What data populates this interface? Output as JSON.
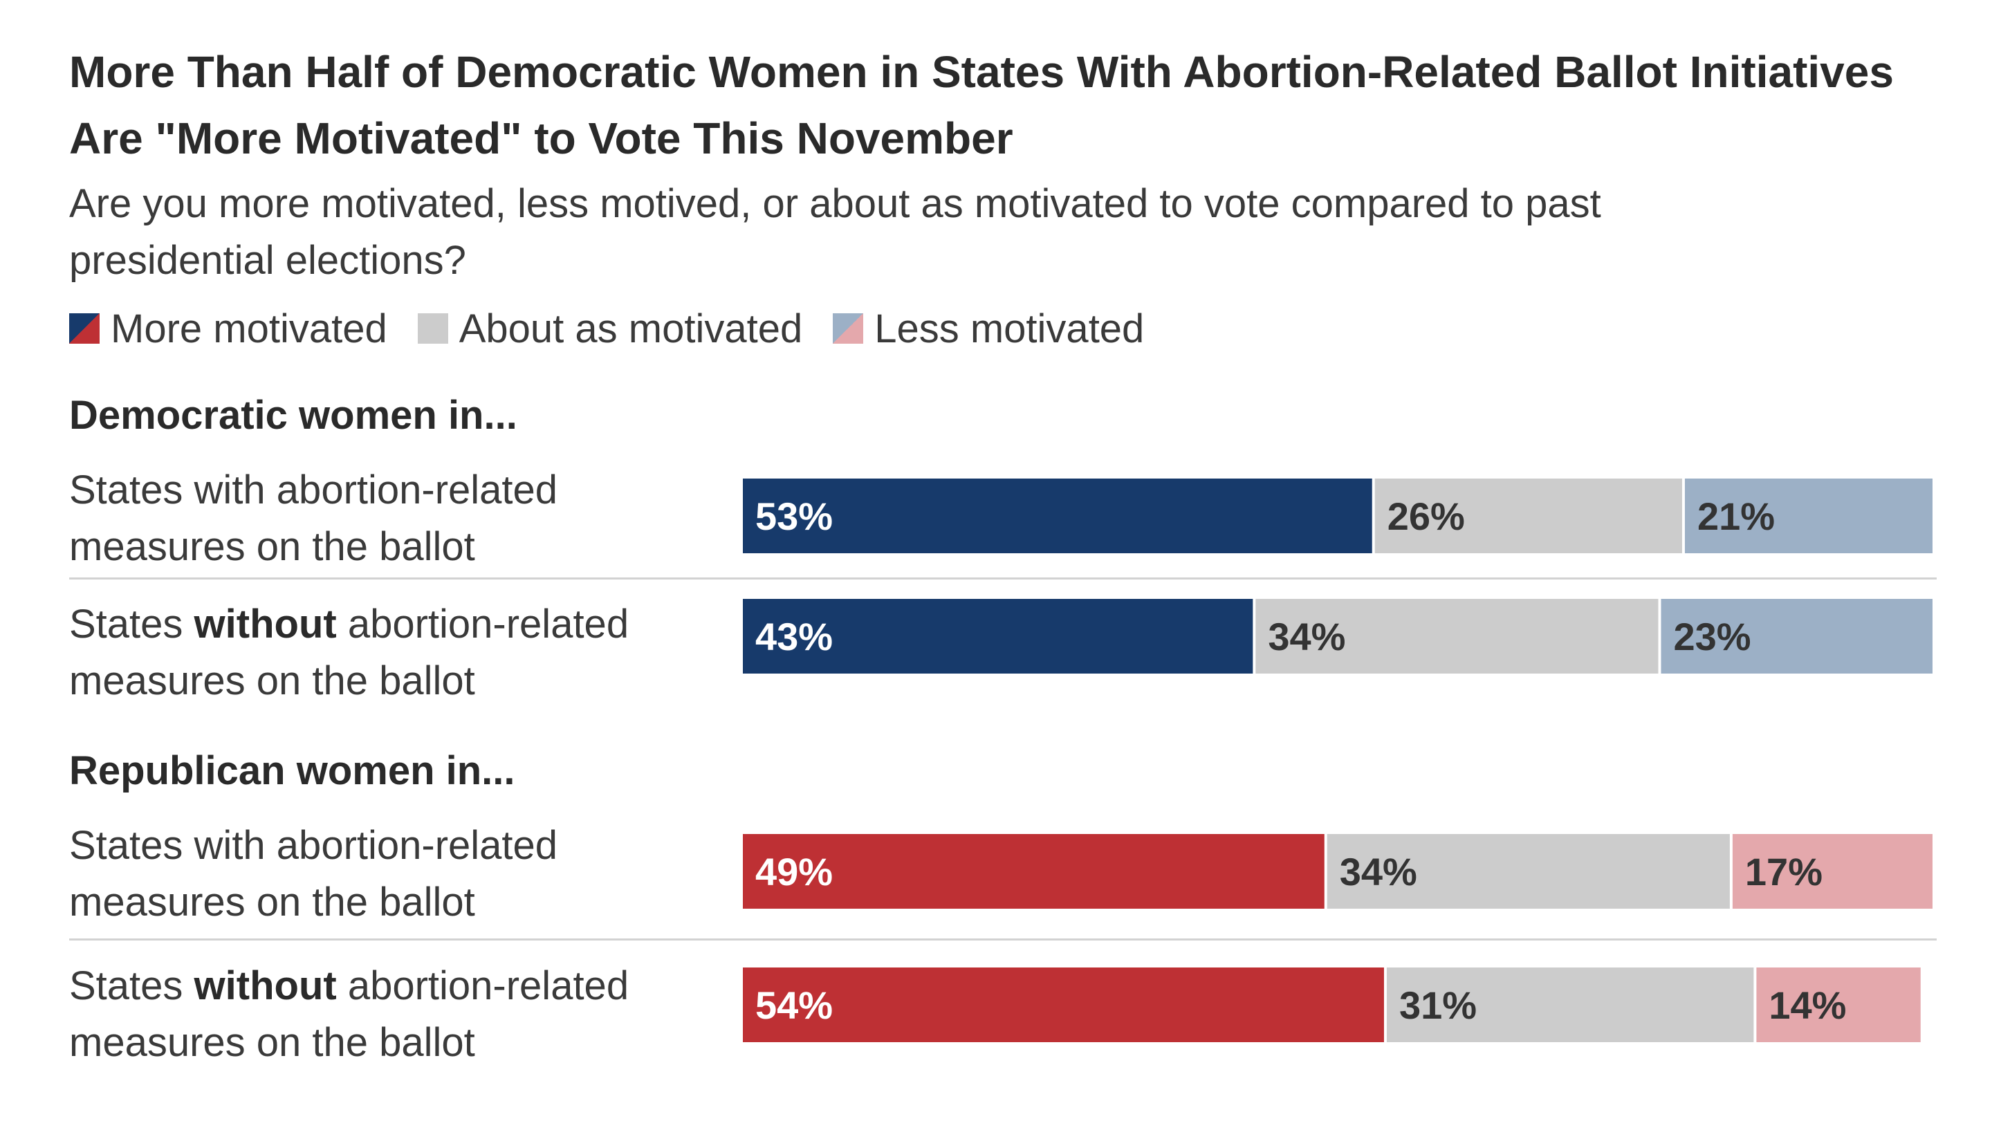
{
  "chart_data": {
    "type": "bar",
    "orientation": "horizontal",
    "stacked": true,
    "title": "More Than Half of Democratic Women in States With Abortion-Related Ballot Initiatives Are \"More Motivated\" to Vote This November",
    "subtitle": "Are you more motivated, less motived, or about as motivated to vote compared to past presidential elections?",
    "legend": [
      "More motivated",
      "About as motivated",
      "Less motivated"
    ],
    "groups": [
      {
        "label": "Democratic women in...",
        "party": "dem",
        "rows": [
          {
            "label_pre": "States with abortion-related",
            "label_bold": "",
            "label_post": "",
            "label_line2": "measures on the ballot",
            "values": [
              53,
              26,
              21
            ]
          },
          {
            "label_pre": "States ",
            "label_bold": "without",
            "label_post": " abortion-related",
            "label_line2": "measures on the ballot",
            "values": [
              43,
              34,
              23
            ]
          }
        ]
      },
      {
        "label": "Republican women in...",
        "party": "rep",
        "rows": [
          {
            "label_pre": "States with abortion-related",
            "label_bold": "",
            "label_post": "",
            "label_line2": "measures on the ballot",
            "values": [
              49,
              34,
              17
            ]
          },
          {
            "label_pre": "States ",
            "label_bold": "without",
            "label_post": " abortion-related",
            "label_line2": "measures on the ballot",
            "values": [
              54,
              31,
              14
            ]
          }
        ]
      }
    ],
    "value_suffix": "%",
    "xlim": [
      0,
      100
    ]
  },
  "colors": {
    "dem_more": "#173a6b",
    "dem_less": "#9cb0c6",
    "rep_more": "#be3034",
    "rep_less": "#e4a8ac",
    "about": "#cccccc",
    "label_light": "#ffffff",
    "label_dark": "#333333"
  }
}
